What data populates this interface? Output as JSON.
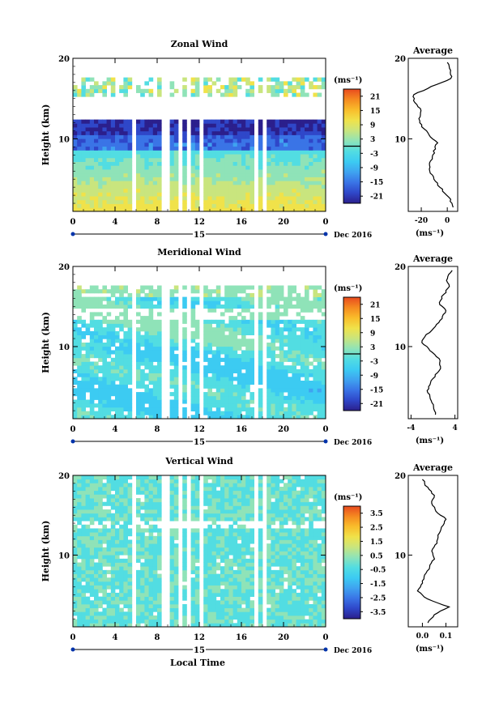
{
  "colorbar_colors": [
    "#2b1f8c",
    "#2f47c9",
    "#3a74e6",
    "#3fa3f0",
    "#3ccbf2",
    "#52dde2",
    "#8fe3b8",
    "#c9e57e",
    "#f0e24a",
    "#f9bd2b",
    "#f58a20",
    "#e94a1f"
  ],
  "x_axis_label": "Local Time",
  "chart_data": [
    {
      "type": "heatmap",
      "panel": "zonal",
      "title": "Zonal Wind",
      "ylabel": "Height (km)",
      "ylim": [
        1,
        20
      ],
      "yticks": [
        "10",
        "20"
      ],
      "xlim": [
        0,
        24
      ],
      "xticks": [
        "0",
        "4",
        "8",
        "12",
        "16",
        "20",
        "0"
      ],
      "day_label": "15",
      "date_label": "Dec 2016",
      "units_label": "(ms⁻¹)",
      "colorbar_ticks": [
        "21",
        "15",
        "9",
        "3",
        "-3",
        "-9",
        "-15",
        "-21"
      ],
      "colorbar_range": [
        -24,
        24
      ],
      "gap_times": [
        5.8,
        8.8,
        10.2,
        11.1,
        12.2,
        17.5,
        18.2
      ],
      "profile_title": "Average",
      "profile_units": "(ms⁻¹)",
      "profile_xticks": [
        "-20",
        "0"
      ],
      "profile_xlim": [
        -30,
        8
      ],
      "profile": {
        "height": [
          1.5,
          2.5,
          3.5,
          4.5,
          5.5,
          6.5,
          7.5,
          8.5,
          9.5,
          10.5,
          11.5,
          12.5,
          13.5,
          14.5,
          15.5,
          16.5,
          17.5,
          18.5,
          19.5
        ],
        "value": [
          4,
          2,
          -3,
          -8,
          -12,
          -14,
          -12,
          -10,
          -8,
          -14,
          -19,
          -22,
          -20,
          -25,
          -26,
          -12,
          3,
          2,
          0
        ]
      }
    },
    {
      "type": "heatmap",
      "panel": "meridional",
      "title": "Meridional Wind",
      "ylabel": "Height (km)",
      "ylim": [
        1,
        20
      ],
      "yticks": [
        "10",
        "20"
      ],
      "xlim": [
        0,
        24
      ],
      "xticks": [
        "0",
        "4",
        "8",
        "12",
        "16",
        "20",
        "0"
      ],
      "day_label": "15",
      "date_label": "Dec 2016",
      "units_label": "(ms⁻¹)",
      "colorbar_ticks": [
        "21",
        "15",
        "9",
        "3",
        "-3",
        "-9",
        "-15",
        "-21"
      ],
      "colorbar_range": [
        -24,
        24
      ],
      "gap_times": [
        5.8,
        8.8,
        10.2,
        11.1,
        12.2,
        17.5,
        18.2
      ],
      "profile_title": "Average",
      "profile_units": "(ms⁻¹)",
      "profile_xticks": [
        "-4",
        "4"
      ],
      "profile_xlim": [
        -4.5,
        4.5
      ],
      "profile": {
        "height": [
          1.5,
          2.5,
          3.5,
          4.5,
          5.5,
          6.5,
          7.5,
          8.5,
          9.5,
          10.5,
          11.5,
          12.5,
          13.5,
          14.5,
          15.5,
          16.5,
          17.5,
          18.5,
          19.5
        ],
        "value": [
          0.5,
          0.2,
          -0.5,
          -1,
          -0.5,
          0.5,
          1.5,
          1.0,
          -0.5,
          -2,
          -1.2,
          0.5,
          1.5,
          2.5,
          1.0,
          2.0,
          3.0,
          2.5,
          3.5
        ]
      }
    },
    {
      "type": "heatmap",
      "panel": "vertical",
      "title": "Vertical Wind",
      "ylabel": "Height (km)",
      "ylim": [
        1,
        20
      ],
      "yticks": [
        "10",
        "20"
      ],
      "xlim": [
        0,
        24
      ],
      "xticks": [
        "0",
        "4",
        "8",
        "12",
        "16",
        "20",
        "0"
      ],
      "day_label": "15",
      "date_label": "Dec 2016",
      "units_label": "(ms⁻¹)",
      "colorbar_ticks": [
        "3.5",
        "2.5",
        "1.5",
        "0.5",
        "-0.5",
        "-1.5",
        "-2.5",
        "-3.5"
      ],
      "colorbar_range": [
        -4,
        4
      ],
      "gap_times": [
        5.8,
        8.8,
        10.2,
        11.1,
        12.2,
        17.5,
        18.2
      ],
      "profile_title": "Average",
      "profile_units": "(ms⁻¹)",
      "profile_xticks": [
        "0.0",
        "0.1"
      ],
      "profile_xlim": [
        -0.06,
        0.15
      ],
      "profile": {
        "height": [
          1.5,
          2.5,
          3.5,
          4.5,
          5.5,
          6.5,
          7.5,
          8.5,
          9.5,
          10.5,
          11.5,
          12.5,
          13.5,
          14.5,
          15.5,
          16.5,
          17.5,
          18.5,
          19.5
        ],
        "value": [
          0.02,
          0.05,
          0.11,
          0.02,
          -0.02,
          0.0,
          0.01,
          0.03,
          0.05,
          0.04,
          0.06,
          0.07,
          0.08,
          0.1,
          0.06,
          0.04,
          0.05,
          0.02,
          0.0
        ]
      }
    }
  ]
}
